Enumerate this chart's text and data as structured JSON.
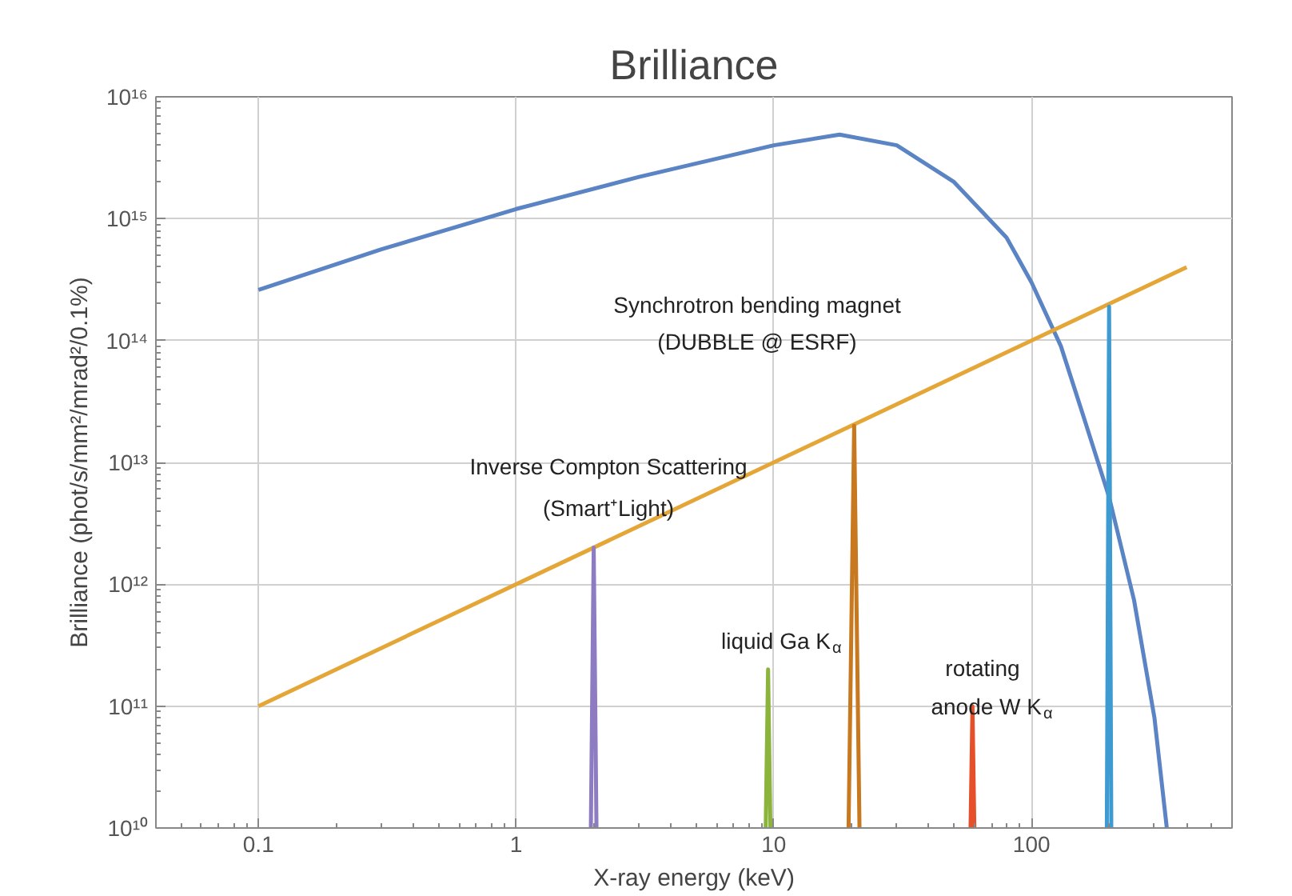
{
  "chart_data": {
    "type": "line",
    "title": "Brilliance",
    "xlabel": "X-ray energy (keV)",
    "ylabel": "Brilliance (phot/s/mm²/mrad²/0.1%)",
    "log": "xy",
    "grid": true,
    "marker": "none",
    "line_style": "solid",
    "xlim": [
      0.04,
      600
    ],
    "ylim": [
      10000000000.0,
      1e+16
    ],
    "xticks": [
      0.1,
      1,
      10,
      100
    ],
    "yticks": [
      {
        "value": 10000000000.0,
        "label": "10¹⁰"
      },
      {
        "value": 100000000000.0,
        "label": "10¹¹"
      },
      {
        "value": 1000000000000.0,
        "label": "10¹²"
      },
      {
        "value": 10000000000000.0,
        "label": "10¹³"
      },
      {
        "value": 100000000000000.0,
        "label": "10¹⁴"
      },
      {
        "value": 1000000000000000.0,
        "label": "10¹⁵"
      },
      {
        "value": 1e+16,
        "label": "10¹⁶"
      }
    ],
    "series": [
      {
        "color": "#5b84c4",
        "x": [
          0.1,
          0.3,
          1,
          3,
          10,
          18,
          30,
          50,
          80,
          100,
          130,
          160,
          200,
          250,
          300,
          335
        ],
        "values": [
          260000000000000.0,
          560000000000000.0,
          1200000000000000.0,
          2200000000000000.0,
          4000000000000000.0,
          4900000000000000.0,
          4000000000000000.0,
          2000000000000000.0,
          700000000000000.0,
          300000000000000.0,
          90000000000000.0,
          23000000000000.0,
          5200000000000.0,
          740000000000.0,
          80000000000.0,
          10000000000.0
        ]
      },
      {
        "color": "#e5a638",
        "x": [
          0.1,
          400
        ],
        "values": [
          100000000000.0,
          400000000000000.0
        ]
      },
      {
        "color": "#8e7cc3",
        "x": [
          1.95,
          2,
          2.05
        ],
        "values": [
          10000000000.0,
          2000000000000.0,
          10000000000.0
        ]
      },
      {
        "color": "#8cb43c",
        "x": [
          9.3,
          9.5,
          9.7
        ],
        "values": [
          10000000000.0,
          200000000000.0,
          10000000000.0
        ]
      },
      {
        "color": "#c8781e",
        "x": [
          19.5,
          20.5,
          21.5
        ],
        "values": [
          10000000000.0,
          20000000000000.0,
          10000000000.0
        ]
      },
      {
        "color": "#e5502a",
        "x": [
          58,
          59,
          60
        ],
        "values": [
          10000000000.0,
          100000000000.0,
          10000000000.0
        ]
      },
      {
        "color": "#3d9bd1",
        "x": [
          196,
          200,
          204
        ],
        "values": [
          10000000000.0,
          190000000000000.0,
          10000000000.0
        ]
      }
    ],
    "annotations": [
      "Synchrotron bending magnet",
      "(DUBBLE @ ESRF)",
      "Inverse Compton Scattering",
      "(Smart⁺Light)",
      "liquid Ga K$_{α}$",
      "rotating",
      "anode W K$_{α}$"
    ]
  }
}
